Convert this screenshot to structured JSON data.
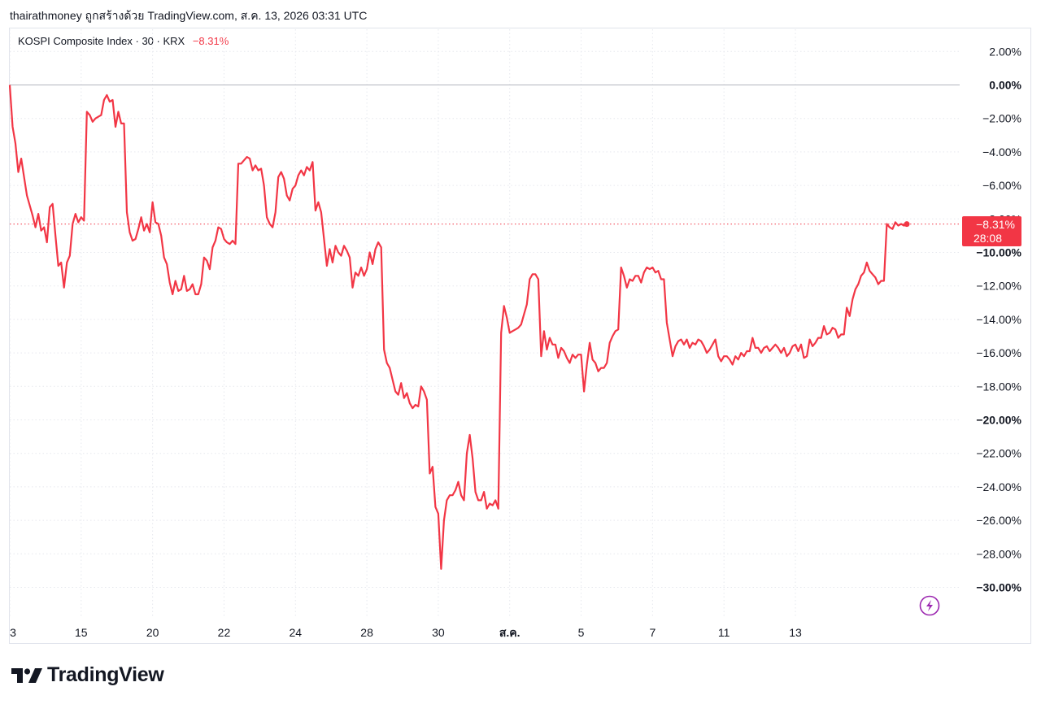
{
  "caption": "thairathmoney ถูกสร้างด้วย TradingView.com, ส.ค. 13, 2026 03:31 UTC",
  "legend": {
    "symbol": "KOSPI Composite Index · 30 · KRX",
    "change": "−8.31%"
  },
  "badge": {
    "value": "−8.31%",
    "countdown": "28:08"
  },
  "brand": {
    "name": "TradingView"
  },
  "colors": {
    "line": "#f23645",
    "grid": "#e6e8ee",
    "zero": "#b2b5be",
    "text": "#131722"
  },
  "icons": {
    "flash": "flash-icon",
    "brand_logo": "tradingview-logo-icon"
  },
  "chart_data": {
    "type": "line",
    "xlabel": "",
    "ylabel": "",
    "y_unit": "%",
    "ylim": [
      -30.5,
      3.0
    ],
    "grid": true,
    "y_ticks": [
      {
        "v": 2,
        "label": "2.00%",
        "bold": false
      },
      {
        "v": 0,
        "label": "0.00%",
        "bold": true
      },
      {
        "v": -2,
        "label": "−2.00%",
        "bold": false
      },
      {
        "v": -4,
        "label": "−4.00%",
        "bold": false
      },
      {
        "v": -6,
        "label": "−6.00%",
        "bold": false
      },
      {
        "v": -8,
        "label": "−8.00%",
        "bold": false
      },
      {
        "v": -10,
        "label": "−10.00%",
        "bold": true
      },
      {
        "v": -12,
        "label": "−12.00%",
        "bold": false
      },
      {
        "v": -14,
        "label": "−14.00%",
        "bold": false
      },
      {
        "v": -16,
        "label": "−16.00%",
        "bold": false
      },
      {
        "v": -18,
        "label": "−18.00%",
        "bold": false
      },
      {
        "v": -20,
        "label": "−20.00%",
        "bold": true
      },
      {
        "v": -22,
        "label": "−22.00%",
        "bold": false
      },
      {
        "v": -24,
        "label": "−24.00%",
        "bold": false
      },
      {
        "v": -26,
        "label": "−26.00%",
        "bold": false
      },
      {
        "v": -28,
        "label": "−28.00%",
        "bold": false
      },
      {
        "v": -30,
        "label": "−30.00%",
        "bold": true
      }
    ],
    "x_ticks": [
      {
        "i": 0,
        "label": "3",
        "bold": false
      },
      {
        "i": 25,
        "label": "15",
        "bold": false
      },
      {
        "i": 50,
        "label": "20",
        "bold": false
      },
      {
        "i": 75,
        "label": "22",
        "bold": false
      },
      {
        "i": 100,
        "label": "24",
        "bold": false
      },
      {
        "i": 125,
        "label": "28",
        "bold": false
      },
      {
        "i": 150,
        "label": "30",
        "bold": false
      },
      {
        "i": 175,
        "label": "ส.ค.",
        "bold": true
      },
      {
        "i": 200,
        "label": "5",
        "bold": false
      },
      {
        "i": 225,
        "label": "7",
        "bold": false
      },
      {
        "i": 250,
        "label": "11",
        "bold": false
      },
      {
        "i": 275,
        "label": "13",
        "bold": false
      }
    ],
    "last_value": -8.31,
    "series": [
      {
        "values": [
          0.0,
          -2.5,
          -3.5,
          -5.2,
          -4.4,
          -5.5,
          -6.6,
          -7.2,
          -7.8,
          -8.5,
          -7.7,
          -8.7,
          -8.5,
          -9.4,
          -7.3,
          -7.1,
          -9.0,
          -10.8,
          -10.6,
          -12.1,
          -10.6,
          -10.2,
          -8.3,
          -7.7,
          -8.2,
          -7.9,
          -8.1,
          -1.6,
          -1.8,
          -2.2,
          -2.0,
          -1.9,
          -1.8,
          -0.9,
          -0.6,
          -1.0,
          -0.9,
          -2.5,
          -1.6,
          -2.3,
          -2.3,
          -7.6,
          -8.8,
          -9.3,
          -9.2,
          -8.6,
          -7.9,
          -8.7,
          -8.3,
          -8.8,
          -7.0,
          -8.2,
          -8.3,
          -9.0,
          -10.3,
          -10.7,
          -11.8,
          -12.5,
          -11.7,
          -12.3,
          -12.2,
          -11.4,
          -12.3,
          -12.2,
          -11.9,
          -12.5,
          -12.5,
          -11.9,
          -10.3,
          -10.5,
          -11.0,
          -9.7,
          -9.3,
          -8.5,
          -8.6,
          -9.2,
          -9.4,
          -9.5,
          -9.3,
          -9.5,
          -4.7,
          -4.7,
          -4.5,
          -4.3,
          -4.4,
          -5.1,
          -4.8,
          -5.1,
          -5.0,
          -6.0,
          -7.9,
          -8.3,
          -8.5,
          -7.6,
          -5.5,
          -5.2,
          -5.6,
          -6.6,
          -6.9,
          -6.2,
          -6.0,
          -5.4,
          -5.1,
          -5.4,
          -4.9,
          -5.1,
          -4.6,
          -7.5,
          -7.0,
          -7.6,
          -9.2,
          -10.8,
          -9.8,
          -10.6,
          -9.6,
          -10.0,
          -10.2,
          -9.6,
          -9.9,
          -10.3,
          -12.1,
          -11.2,
          -11.4,
          -10.9,
          -11.4,
          -11.0,
          -10.0,
          -10.7,
          -9.8,
          -9.4,
          -9.7,
          -15.8,
          -16.6,
          -16.9,
          -17.6,
          -18.3,
          -18.5,
          -17.8,
          -18.7,
          -18.4,
          -19.0,
          -19.3,
          -19.1,
          -19.2,
          -18.0,
          -18.3,
          -18.8,
          -23.2,
          -22.8,
          -25.2,
          -25.6,
          -28.9,
          -26.0,
          -24.8,
          -24.5,
          -24.5,
          -24.2,
          -23.7,
          -24.5,
          -24.8,
          -22.0,
          -20.9,
          -22.3,
          -24.3,
          -24.8,
          -24.8,
          -24.3,
          -25.3,
          -25.0,
          -25.1,
          -24.8,
          -25.3,
          -14.8,
          -13.2,
          -13.9,
          -14.8,
          -14.7,
          -14.6,
          -14.5,
          -14.3,
          -13.7,
          -13.1,
          -11.6,
          -11.3,
          -11.3,
          -11.6,
          -16.2,
          -14.7,
          -15.8,
          -15.1,
          -15.5,
          -15.5,
          -16.3,
          -15.7,
          -15.9,
          -16.3,
          -16.6,
          -16.1,
          -16.3,
          -16.1,
          -16.1,
          -18.3,
          -16.7,
          -15.4,
          -16.4,
          -16.6,
          -17.1,
          -16.9,
          -16.9,
          -16.6,
          -15.4,
          -15.0,
          -14.7,
          -14.6,
          -10.9,
          -11.4,
          -12.1,
          -11.6,
          -11.7,
          -11.4,
          -11.4,
          -11.8,
          -11.2,
          -10.9,
          -11.0,
          -10.9,
          -11.2,
          -11.1,
          -11.6,
          -11.6,
          -14.2,
          -15.2,
          -16.2,
          -15.6,
          -15.3,
          -15.2,
          -15.5,
          -15.2,
          -15.7,
          -15.4,
          -15.5,
          -15.2,
          -15.3,
          -15.6,
          -16.0,
          -15.8,
          -15.5,
          -15.2,
          -16.2,
          -16.5,
          -16.2,
          -16.2,
          -16.4,
          -16.7,
          -16.2,
          -16.4,
          -16.0,
          -16.2,
          -15.9,
          -15.9,
          -15.1,
          -15.7,
          -15.7,
          -16.0,
          -15.7,
          -15.6,
          -15.9,
          -15.7,
          -15.5,
          -15.7,
          -16.0,
          -15.7,
          -16.2,
          -16.0,
          -15.6,
          -15.5,
          -15.9,
          -15.5,
          -16.3,
          -16.2,
          -15.2,
          -15.6,
          -15.4,
          -15.1,
          -15.1,
          -14.4,
          -14.9,
          -14.8,
          -14.5,
          -14.6,
          -15.1,
          -14.9,
          -14.9,
          -13.3,
          -13.8,
          -12.8,
          -12.2,
          -11.9,
          -11.4,
          -11.2,
          -10.6,
          -11.1,
          -11.3,
          -11.5,
          -11.9,
          -11.7,
          -11.7,
          -8.3,
          -8.5,
          -8.6,
          -8.2,
          -8.4,
          -8.3,
          -8.4,
          -8.31
        ]
      }
    ]
  }
}
